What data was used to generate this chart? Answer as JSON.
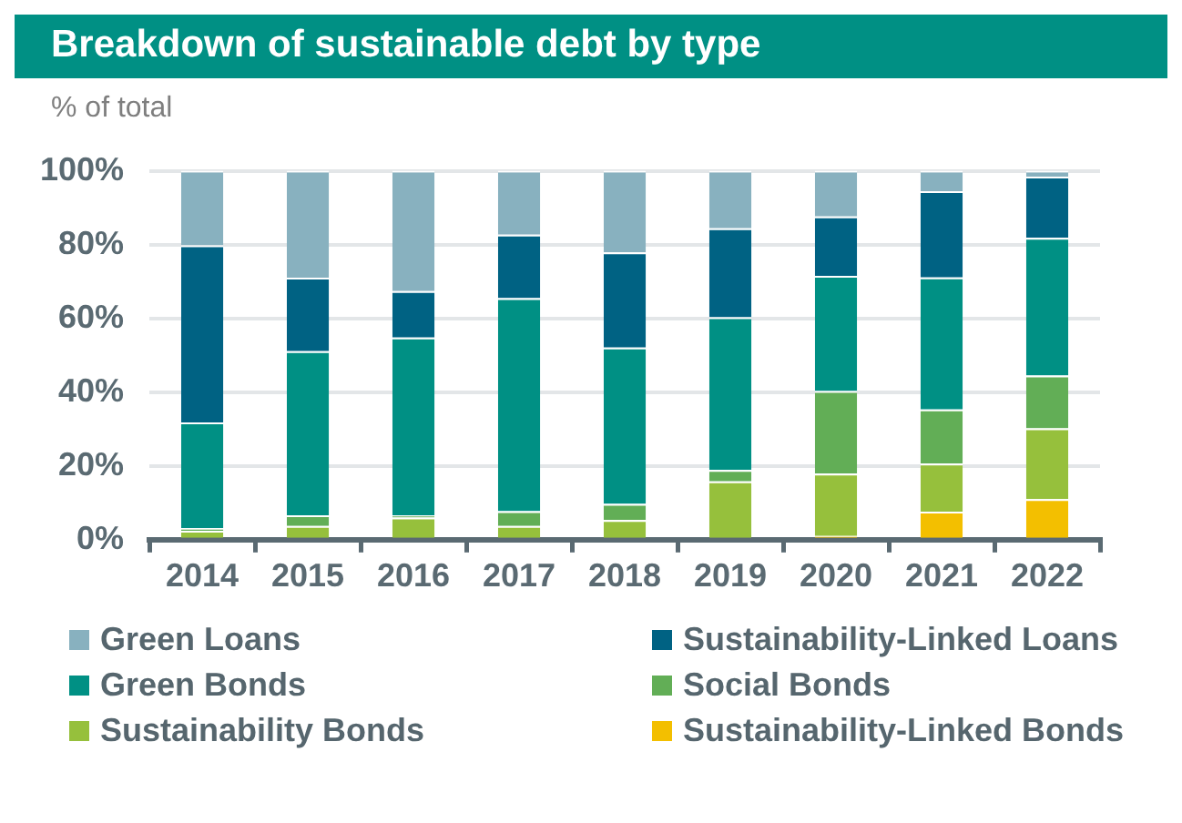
{
  "chart_data": {
    "type": "bar",
    "title": "Breakdown of sustainable debt by type",
    "ylabel": "% of total",
    "categories": [
      "2014",
      "2015",
      "2016",
      "2017",
      "2018",
      "2019",
      "2020",
      "2021",
      "2022"
    ],
    "stacked": true,
    "ylim": [
      0,
      100
    ],
    "yticks": [
      {
        "value": 0,
        "label": "0%"
      },
      {
        "value": 20,
        "label": "20%"
      },
      {
        "value": 40,
        "label": "40%"
      },
      {
        "value": 60,
        "label": "60%"
      },
      {
        "value": 80,
        "label": "80%"
      },
      {
        "value": 100,
        "label": "100%"
      }
    ],
    "grid": "y",
    "legend": "bottom",
    "series": [
      {
        "name": "Sustainability-Linked Bonds",
        "color": "#f3bf00",
        "values": [
          0,
          0,
          0,
          0,
          0,
          0.5,
          1,
          7.6,
          11
        ]
      },
      {
        "name": "Sustainability Bonds",
        "color": "#96c03c",
        "values": [
          2.4,
          3.7,
          6,
          3.7,
          5.3,
          15.3,
          16.9,
          13,
          19.2
        ]
      },
      {
        "name": "Social Bonds",
        "color": "#62ae56",
        "values": [
          0.7,
          2.9,
          0.6,
          4,
          4.4,
          3.1,
          22.4,
          14.7,
          14.3
        ]
      },
      {
        "name": "Green Bonds",
        "color": "#009084",
        "values": [
          28.7,
          44.5,
          48.2,
          57.8,
          42.4,
          41.4,
          31.2,
          35.8,
          37.3
        ]
      },
      {
        "name": "Sustainability-Linked Loans",
        "color": "#006283",
        "values": [
          48,
          19.9,
          12.6,
          17.2,
          25.8,
          24.1,
          16.1,
          23.4,
          16.6
        ]
      },
      {
        "name": "Green Loans",
        "color": "#88b1bf",
        "values": [
          20.2,
          29,
          32.6,
          17.3,
          22.1,
          15.6,
          12.4,
          5.5,
          1.6
        ]
      }
    ]
  }
}
